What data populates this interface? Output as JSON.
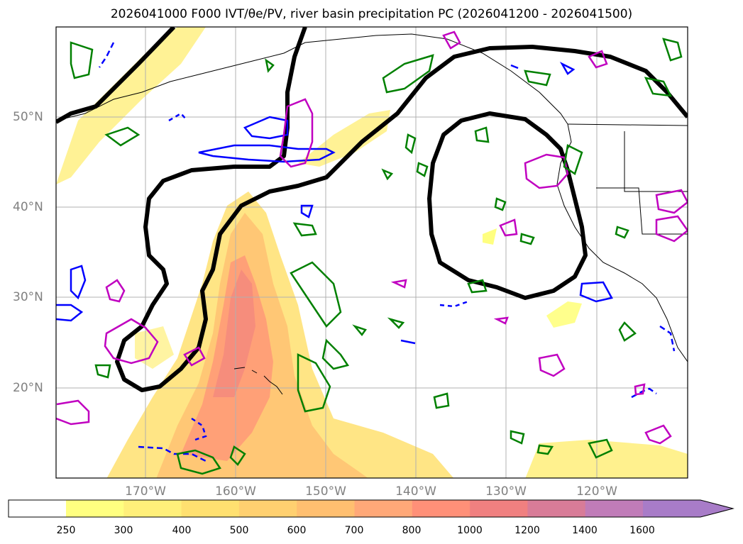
{
  "title": "2026041000 F000 IVT/θe/PV, river basin precipitation PC (2026041200 - 2026041500)",
  "map": {
    "lat_labels": [
      "50°N",
      "40°N",
      "30°N",
      "20°N"
    ],
    "lon_labels": [
      "170°W",
      "160°W",
      "150°W",
      "140°W",
      "130°W",
      "120°W"
    ]
  },
  "colorbar": {
    "ticks": [
      "250",
      "300",
      "400",
      "500",
      "600",
      "700",
      "800",
      "1000",
      "1200",
      "1400",
      "1600"
    ],
    "colors": [
      "#ffff80",
      "#ffef7a",
      "#ffe070",
      "#ffd070",
      "#ffbf70",
      "#ffa878",
      "#ff9078",
      "#f08080",
      "#d87c98",
      "#c07cb8",
      "#a87cc8"
    ],
    "extend": "max"
  }
}
